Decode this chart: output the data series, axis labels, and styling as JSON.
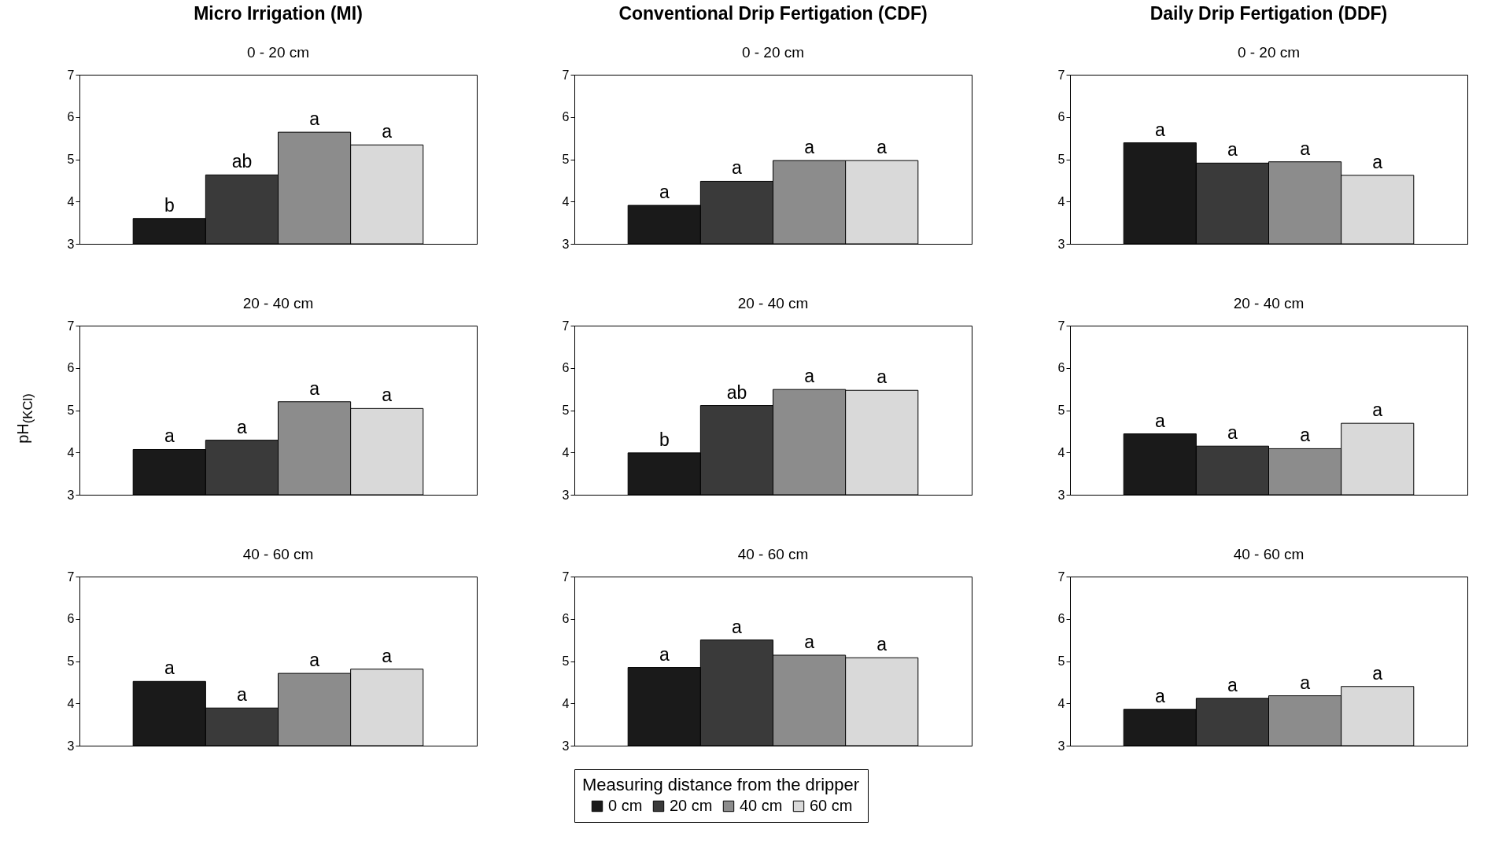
{
  "chart_data": [
    {
      "type": "bar",
      "title": "Micro Irrigation (MI)",
      "subtitle": "0 - 20 cm",
      "categories": [
        null
      ],
      "ylim": [
        3,
        7
      ],
      "yticks": [
        3,
        4,
        5,
        6,
        7
      ],
      "tick_labels": "y",
      "series": [
        {
          "color": "#1a1a1a",
          "values": [
            3.6
          ],
          "value_labels": [
            "b"
          ]
        },
        {
          "color": "#3a3a3a",
          "values": [
            4.63
          ],
          "value_labels": [
            "ab"
          ]
        },
        {
          "color": "#8c8c8c",
          "values": [
            5.64
          ],
          "value_labels": [
            "a"
          ]
        },
        {
          "color": "#d9d9d9",
          "values": [
            5.34
          ],
          "value_labels": [
            "a"
          ]
        }
      ]
    },
    {
      "type": "bar",
      "title": "Conventional Drip Fertigation (CDF)",
      "subtitle": "0 - 20 cm",
      "categories": [
        null
      ],
      "ylim": [
        3,
        7
      ],
      "yticks": [
        3,
        4,
        5,
        6,
        7
      ],
      "tick_labels": "y",
      "series": [
        {
          "color": "#1a1a1a",
          "values": [
            3.91
          ],
          "value_labels": [
            "a"
          ]
        },
        {
          "color": "#3a3a3a",
          "values": [
            4.48
          ],
          "value_labels": [
            "a"
          ]
        },
        {
          "color": "#8c8c8c",
          "values": [
            4.97
          ],
          "value_labels": [
            "a"
          ]
        },
        {
          "color": "#d9d9d9",
          "values": [
            4.97
          ],
          "value_labels": [
            "a"
          ]
        }
      ]
    },
    {
      "type": "bar",
      "title": "Daily Drip Fertigation (DDF)",
      "subtitle": "0 - 20 cm",
      "categories": [
        null
      ],
      "ylim": [
        3,
        7
      ],
      "yticks": [
        3,
        4,
        5,
        6,
        7
      ],
      "tick_labels": "y",
      "series": [
        {
          "color": "#1a1a1a",
          "values": [
            5.39
          ],
          "value_labels": [
            "a"
          ]
        },
        {
          "color": "#3a3a3a",
          "values": [
            4.91
          ],
          "value_labels": [
            "a"
          ]
        },
        {
          "color": "#8c8c8c",
          "values": [
            4.94
          ],
          "value_labels": [
            "a"
          ]
        },
        {
          "color": "#d9d9d9",
          "values": [
            4.62
          ],
          "value_labels": [
            "a"
          ]
        }
      ]
    },
    {
      "type": "bar",
      "subtitle": "20 - 40 cm",
      "ylabel": "pH$_{(KCl)}$",
      "categories": [
        null
      ],
      "ylim": [
        3,
        7
      ],
      "yticks": [
        3,
        4,
        5,
        6,
        7
      ],
      "tick_labels": "y",
      "series": [
        {
          "color": "#1a1a1a",
          "values": [
            4.07
          ],
          "value_labels": [
            "a"
          ]
        },
        {
          "color": "#3a3a3a",
          "values": [
            4.29
          ],
          "value_labels": [
            "a"
          ]
        },
        {
          "color": "#8c8c8c",
          "values": [
            5.2
          ],
          "value_labels": [
            "a"
          ]
        },
        {
          "color": "#d9d9d9",
          "values": [
            5.04
          ],
          "value_labels": [
            "a"
          ]
        }
      ]
    },
    {
      "type": "bar",
      "subtitle": "20 - 40 cm",
      "categories": [
        null
      ],
      "ylim": [
        3,
        7
      ],
      "yticks": [
        3,
        4,
        5,
        6,
        7
      ],
      "tick_labels": "y",
      "series": [
        {
          "color": "#1a1a1a",
          "values": [
            3.99
          ],
          "value_labels": [
            "b"
          ]
        },
        {
          "color": "#3a3a3a",
          "values": [
            5.11
          ],
          "value_labels": [
            "ab"
          ]
        },
        {
          "color": "#8c8c8c",
          "values": [
            5.49
          ],
          "value_labels": [
            "a"
          ]
        },
        {
          "color": "#d9d9d9",
          "values": [
            5.47
          ],
          "value_labels": [
            "a"
          ]
        }
      ]
    },
    {
      "type": "bar",
      "subtitle": "20 - 40 cm",
      "categories": [
        null
      ],
      "ylim": [
        3,
        7
      ],
      "yticks": [
        3,
        4,
        5,
        6,
        7
      ],
      "tick_labels": "y",
      "series": [
        {
          "color": "#1a1a1a",
          "values": [
            4.44
          ],
          "value_labels": [
            "a"
          ]
        },
        {
          "color": "#3a3a3a",
          "values": [
            4.15
          ],
          "value_labels": [
            "a"
          ]
        },
        {
          "color": "#8c8c8c",
          "values": [
            4.09
          ],
          "value_labels": [
            "a"
          ]
        },
        {
          "color": "#d9d9d9",
          "values": [
            4.69
          ],
          "value_labels": [
            "a"
          ]
        }
      ]
    },
    {
      "type": "bar",
      "subtitle": "40 - 60 cm",
      "categories": [
        null
      ],
      "ylim": [
        3,
        7
      ],
      "yticks": [
        3,
        4,
        5,
        6,
        7
      ],
      "tick_labels": "y",
      "series": [
        {
          "color": "#1a1a1a",
          "values": [
            4.52
          ],
          "value_labels": [
            "a"
          ]
        },
        {
          "color": "#3a3a3a",
          "values": [
            3.89
          ],
          "value_labels": [
            "a"
          ]
        },
        {
          "color": "#8c8c8c",
          "values": [
            4.71
          ],
          "value_labels": [
            "a"
          ]
        },
        {
          "color": "#d9d9d9",
          "values": [
            4.81
          ],
          "value_labels": [
            "a"
          ]
        }
      ]
    },
    {
      "type": "bar",
      "subtitle": "40 - 60 cm",
      "categories": [
        null
      ],
      "ylim": [
        3,
        7
      ],
      "yticks": [
        3,
        4,
        5,
        6,
        7
      ],
      "tick_labels": "y",
      "legend": "bottom",
      "legend_title": "Measuring distance from the dripper",
      "series": [
        {
          "name": "0 cm",
          "color": "#1a1a1a",
          "values": [
            4.85
          ],
          "value_labels": [
            "a"
          ]
        },
        {
          "name": "20 cm",
          "color": "#3a3a3a",
          "values": [
            5.5
          ],
          "value_labels": [
            "a"
          ]
        },
        {
          "name": "40 cm",
          "color": "#8c8c8c",
          "values": [
            5.14
          ],
          "value_labels": [
            "a"
          ]
        },
        {
          "name": "60 cm",
          "color": "#d9d9d9",
          "values": [
            5.08
          ],
          "value_labels": [
            "a"
          ]
        }
      ]
    },
    {
      "type": "bar",
      "subtitle": "40 - 60 cm",
      "categories": [
        null
      ],
      "ylim": [
        3,
        7
      ],
      "yticks": [
        3,
        4,
        5,
        6,
        7
      ],
      "tick_labels": "y",
      "series": [
        {
          "color": "#1a1a1a",
          "values": [
            3.86
          ],
          "value_labels": [
            "a"
          ]
        },
        {
          "color": "#3a3a3a",
          "values": [
            4.12
          ],
          "value_labels": [
            "a"
          ]
        },
        {
          "color": "#8c8c8c",
          "values": [
            4.18
          ],
          "value_labels": [
            "a"
          ]
        },
        {
          "color": "#d9d9d9",
          "values": [
            4.4
          ],
          "value_labels": [
            "a"
          ]
        }
      ]
    }
  ]
}
